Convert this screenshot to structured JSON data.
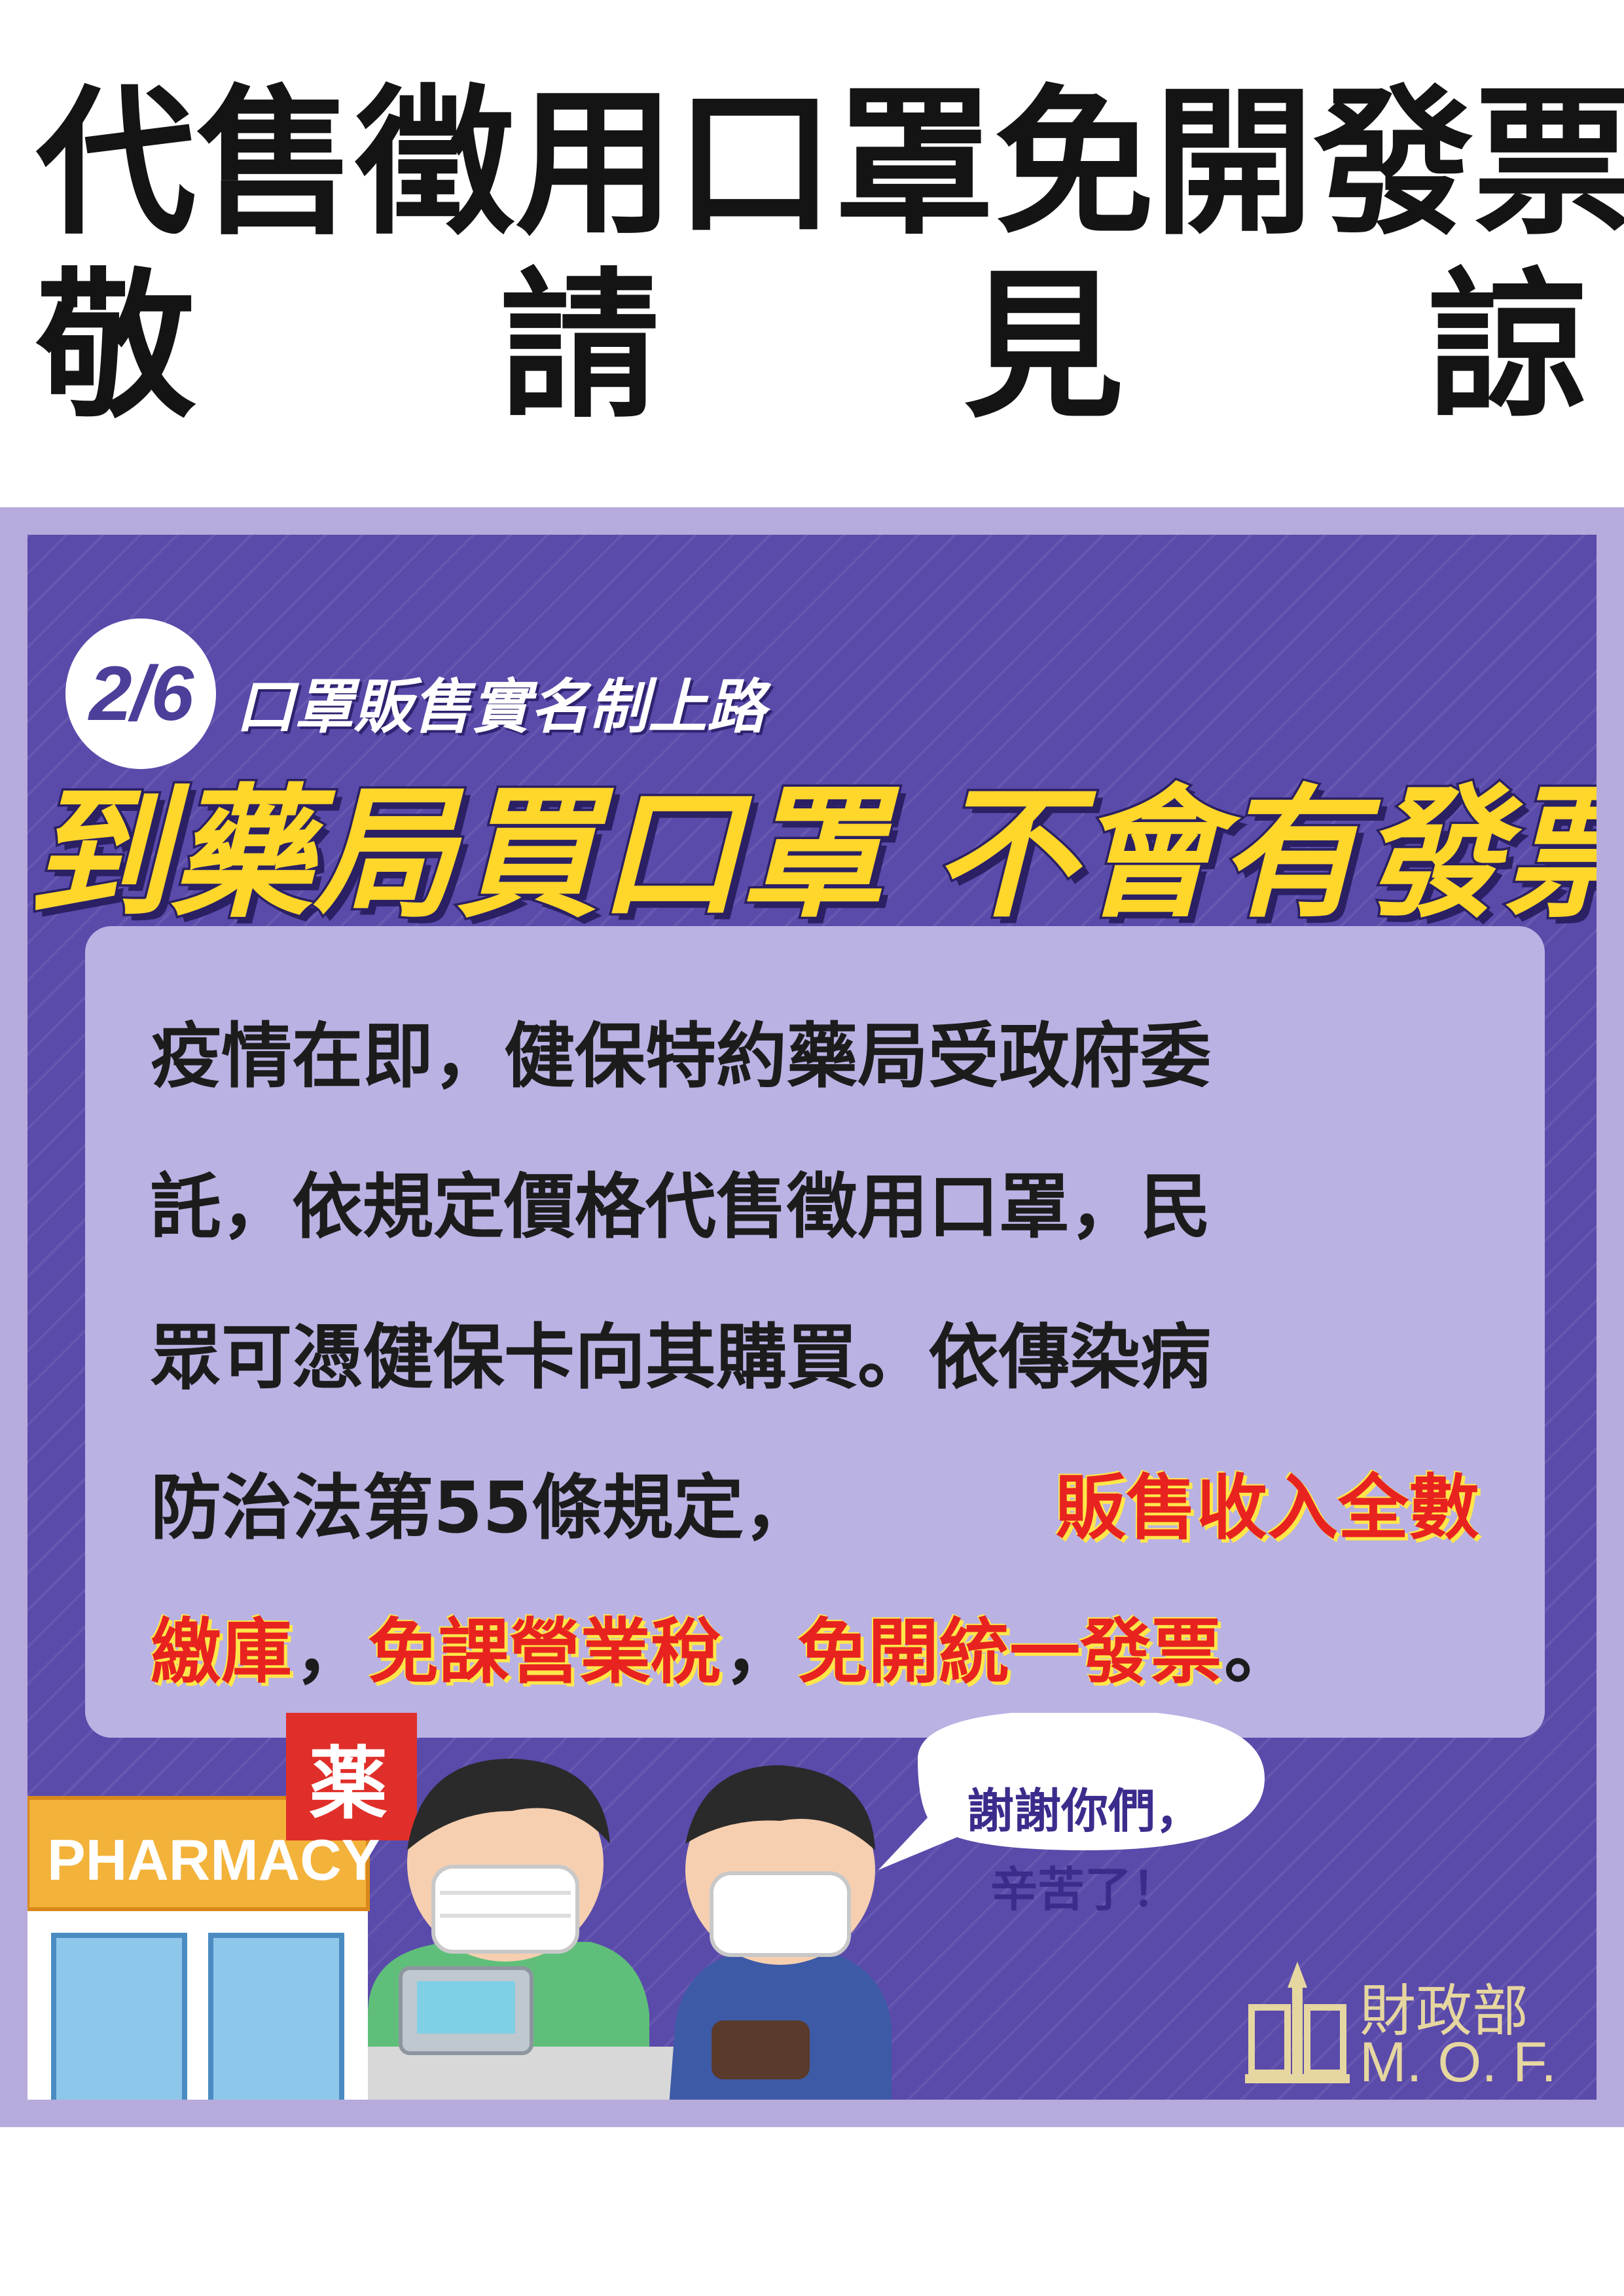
{
  "headline": {
    "line1": [
      "代",
      "售",
      "徵",
      "用",
      "口",
      "罩",
      "免",
      "開",
      "發",
      "票"
    ],
    "line2": [
      "敬",
      "請",
      "見",
      "諒"
    ]
  },
  "poster": {
    "date_badge": "2/6",
    "subtitle": "口罩販售實名制上路",
    "main_title": "到藥局買口罩 不會有發票",
    "body_lines": [
      "疫情在即，健保特約藥局受政府委",
      "託，依規定價格代售徵用口罩，民",
      "眾可憑健保卡向其購買。依傳染病"
    ],
    "line4_black": "防治法第55條規定，",
    "line4_red": "販售收入全數",
    "line5_parts": [
      {
        "text": "繳庫",
        "red": true
      },
      {
        "text": "，",
        "red": false
      },
      {
        "text": "免課營業稅",
        "red": true
      },
      {
        "text": "，",
        "red": false
      },
      {
        "text": "免開統一發票",
        "red": true
      },
      {
        "text": "。",
        "red": false
      }
    ],
    "pharmacy_sign": "PHARMACY",
    "pharmacy_kanji": "薬",
    "speech_line1": "謝謝你們，",
    "speech_line2": "辛苦了！",
    "ministry_name": "財政部",
    "ministry_abbr": "M. O. F."
  },
  "colors": {
    "poster_bg": "#5a4aaa",
    "poster_frame": "#b6abdc",
    "title_yellow": "#ffd62a",
    "highlight_red": "#e8231f"
  }
}
